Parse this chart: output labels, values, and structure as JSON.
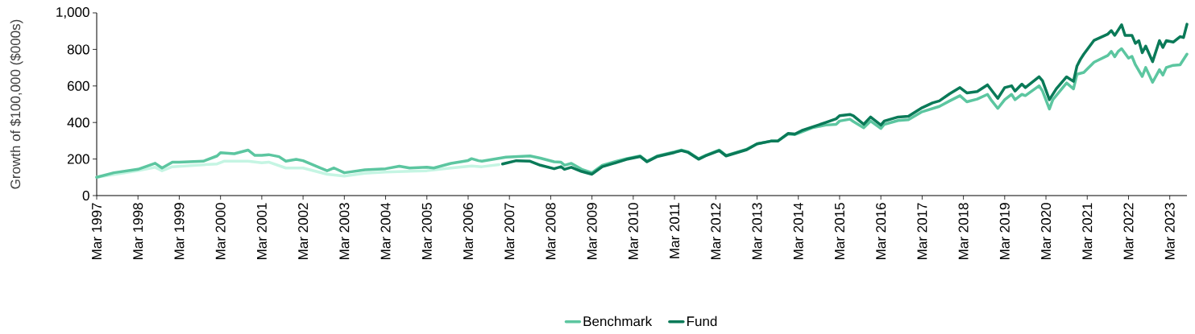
{
  "chart_data": {
    "type": "line",
    "ylabel": "Growth of $100,000 ($000s)",
    "legend": "bottom",
    "xlim": [
      "1997-03",
      "2023-08"
    ],
    "ylim": [
      0,
      1000
    ],
    "yticks": [
      0,
      200,
      400,
      600,
      800,
      {
        "value": 1000,
        "label": "1,000"
      }
    ],
    "xticks": [
      {
        "value": "1997-03",
        "label": "Mar 1997"
      },
      {
        "value": "1998-03",
        "label": "Mar 1998"
      },
      {
        "value": "1999-03",
        "label": "Mar 1999"
      },
      {
        "value": "2000-03",
        "label": "Mar 2000"
      },
      {
        "value": "2001-03",
        "label": "Mar 2001"
      },
      {
        "value": "2002-03",
        "label": "Mar 2002"
      },
      {
        "value": "2003-03",
        "label": "Mar 2003"
      },
      {
        "value": "2004-03",
        "label": "Mar 2004"
      },
      {
        "value": "2005-03",
        "label": "Mar 2005"
      },
      {
        "value": "2006-03",
        "label": "Mar 2006"
      },
      {
        "value": "2007-03",
        "label": "Mar 2007"
      },
      {
        "value": "2008-03",
        "label": "Mar 2008"
      },
      {
        "value": "2009-03",
        "label": "Mar 2009"
      },
      {
        "value": "2010-03",
        "label": "Mar 2010"
      },
      {
        "value": "2011-03",
        "label": "Mar 2011"
      },
      {
        "value": "2012-03",
        "label": "Mar 2012"
      },
      {
        "value": "2013-03",
        "label": "Mar 2013"
      },
      {
        "value": "2014-03",
        "label": "Mar 2014"
      },
      {
        "value": "2015-03",
        "label": "Mar 2015"
      },
      {
        "value": "2016-03",
        "label": "Mar 2016"
      },
      {
        "value": "2017-03",
        "label": "Mar 2017"
      },
      {
        "value": "2018-03",
        "label": "Mar 2018"
      },
      {
        "value": "2019-03",
        "label": "Mar 2019"
      },
      {
        "value": "2020-03",
        "label": "Mar 2020"
      },
      {
        "value": "2021-03",
        "label": "Mar 2021"
      },
      {
        "value": "2022-03",
        "label": "Mar 2022"
      },
      {
        "value": "2023-03",
        "label": "Mar 2023"
      }
    ],
    "series": [
      {
        "color": "#c5f5e3",
        "x": [
          "1997-03",
          "1998-03",
          "1998-08",
          "1998-10",
          "1999-01",
          "1999-10",
          "2000-02",
          "2000-04",
          "2000-11",
          "2001-03",
          "2001-05",
          "2001-10",
          "2002-03",
          "2002-10",
          "2003-03",
          "2003-09",
          "2004-03",
          "2005-03",
          "2005-10",
          "2006-04",
          "2006-07",
          "2006-12"
        ],
        "values": [
          100,
          136,
          155,
          136,
          158,
          169,
          173,
          188,
          188,
          180,
          183,
          151,
          151,
          117,
          107,
          122,
          129,
          136,
          151,
          162,
          158,
          170
        ]
      },
      {
        "name": "Benchmark",
        "color": "#5cc6a0",
        "x": [
          "1997-03",
          "1997-08",
          "1998-03",
          "1998-08",
          "1998-10",
          "1999-01",
          "1999-03",
          "1999-10",
          "2000-02",
          "2000-03",
          "2000-07",
          "2000-11",
          "2001-01",
          "2001-03",
          "2001-05",
          "2001-08",
          "2001-10",
          "2002-01",
          "2002-03",
          "2002-08",
          "2002-10",
          "2002-12",
          "2003-03",
          "2003-09",
          "2004-03",
          "2004-07",
          "2004-10",
          "2005-03",
          "2005-05",
          "2005-10",
          "2006-03",
          "2006-04",
          "2006-06",
          "2006-07",
          "2007-02",
          "2007-09",
          "2007-12",
          "2008-04",
          "2008-06",
          "2008-07",
          "2008-09",
          "2008-12",
          "2009-03",
          "2009-06",
          "2009-10",
          "2010-01",
          "2010-05",
          "2010-07",
          "2010-10",
          "2011-03",
          "2011-05",
          "2011-07",
          "2011-10",
          "2011-12",
          "2012-04",
          "2012-06",
          "2012-12",
          "2013-03",
          "2013-07",
          "2013-09",
          "2013-12",
          "2014-02",
          "2014-04",
          "2014-07",
          "2014-11",
          "2015-02",
          "2015-03",
          "2015-06",
          "2015-07",
          "2015-10",
          "2015-12",
          "2016-03",
          "2016-04",
          "2016-08",
          "2016-11",
          "2017-03",
          "2017-08",
          "2017-11",
          "2018-02",
          "2018-04",
          "2018-07",
          "2018-10",
          "2018-11",
          "2019-01",
          "2019-03",
          "2019-05",
          "2019-06",
          "2019-08",
          "2019-09",
          "2020-01",
          "2020-02",
          "2020-04",
          "2020-05",
          "2020-09",
          "2020-11",
          "2020-12",
          "2021-02",
          "2021-05",
          "2021-09",
          "2021-10",
          "2021-11",
          "2021-12",
          "2022-01",
          "2022-03",
          "2022-04",
          "2022-05",
          "2022-07",
          "2022-08",
          "2022-10",
          "2022-12",
          "2023-01",
          "2023-02",
          "2023-04",
          "2023-06",
          "2023-08"
        ],
        "values": [
          100,
          125,
          144,
          177,
          151,
          183,
          183,
          188,
          217,
          235,
          229,
          249,
          220,
          220,
          224,
          213,
          188,
          198,
          191,
          151,
          136,
          151,
          125,
          141,
          147,
          161,
          151,
          155,
          151,
          176,
          192,
          202,
          191,
          188,
          210,
          217,
          205,
          185,
          183,
          166,
          176,
          144,
          125,
          166,
          188,
          202,
          217,
          188,
          217,
          239,
          249,
          239,
          202,
          220,
          249,
          220,
          254,
          283,
          298,
          298,
          337,
          334,
          349,
          371,
          386,
          390,
          408,
          418,
          405,
          371,
          408,
          367,
          390,
          411,
          415,
          459,
          488,
          518,
          547,
          513,
          528,
          554,
          525,
          477,
          525,
          554,
          525,
          554,
          547,
          601,
          572,
          474,
          525,
          616,
          584,
          664,
          674,
          730,
          767,
          789,
          760,
          789,
          804,
          752,
          762,
          716,
          652,
          701,
          620,
          689,
          660,
          701,
          713,
          716,
          774
        ]
      },
      {
        "name": "Fund",
        "color": "#0a7a58",
        "x": [
          "2007-01",
          "2007-05",
          "2007-09",
          "2007-12",
          "2008-04",
          "2008-06",
          "2008-07",
          "2008-09",
          "2008-12",
          "2009-03",
          "2009-06",
          "2009-10",
          "2010-01",
          "2010-05",
          "2010-07",
          "2010-10",
          "2011-03",
          "2011-05",
          "2011-07",
          "2011-10",
          "2011-12",
          "2012-04",
          "2012-06",
          "2012-12",
          "2013-03",
          "2013-07",
          "2013-09",
          "2013-12",
          "2014-02",
          "2014-04",
          "2014-07",
          "2014-11",
          "2015-02",
          "2015-03",
          "2015-06",
          "2015-07",
          "2015-10",
          "2015-12",
          "2016-03",
          "2016-04",
          "2016-08",
          "2016-11",
          "2017-03",
          "2017-06",
          "2017-08",
          "2017-11",
          "2018-02",
          "2018-04",
          "2018-07",
          "2018-10",
          "2019-01",
          "2019-03",
          "2019-05",
          "2019-06",
          "2019-08",
          "2019-09",
          "2020-01",
          "2020-02",
          "2020-04",
          "2020-06",
          "2020-09",
          "2020-11",
          "2020-12",
          "2021-01",
          "2021-02",
          "2021-05",
          "2021-09",
          "2021-10",
          "2021-11",
          "2021-12",
          "2022-01",
          "2022-02",
          "2022-04",
          "2022-05",
          "2022-06",
          "2022-07",
          "2022-08",
          "2022-10",
          "2022-12",
          "2023-01",
          "2023-02",
          "2023-04",
          "2023-06",
          "2023-07",
          "2023-08"
        ],
        "values": [
          173,
          191,
          188,
          166,
          147,
          158,
          144,
          155,
          132,
          117,
          158,
          180,
          198,
          214,
          185,
          214,
          236,
          246,
          236,
          199,
          217,
          246,
          217,
          251,
          283,
          298,
          298,
          340,
          337,
          356,
          375,
          400,
          420,
          437,
          444,
          437,
          390,
          430,
          386,
          408,
          430,
          434,
          481,
          507,
          518,
          557,
          591,
          562,
          569,
          606,
          532,
          591,
          601,
          572,
          610,
          591,
          650,
          628,
          525,
          584,
          650,
          625,
          708,
          745,
          774,
          850,
          884,
          903,
          877,
          906,
          935,
          877,
          877,
          833,
          848,
          782,
          818,
          733,
          848,
          811,
          848,
          840,
          870,
          865,
          938
        ]
      }
    ]
  }
}
